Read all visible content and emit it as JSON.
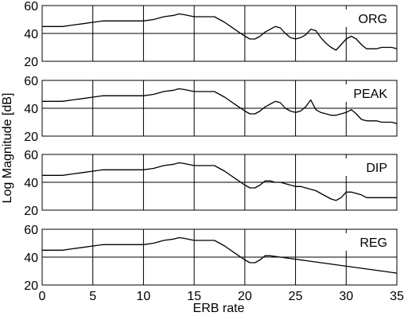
{
  "chart_data": [
    {
      "type": "line",
      "panel_label": "ORG",
      "xlim": [
        0,
        35
      ],
      "ylim": [
        20,
        60
      ],
      "yticks": [
        20,
        40,
        60
      ],
      "xticks": [
        0,
        5,
        10,
        15,
        20,
        25,
        30,
        35
      ],
      "grid": true,
      "x": [
        0,
        1,
        2,
        3,
        4,
        5,
        6,
        7,
        8,
        9,
        10,
        11,
        12,
        13,
        13.5,
        14,
        15,
        16,
        17,
        18,
        19,
        20,
        20.5,
        21,
        21.5,
        22,
        22.5,
        23,
        23.5,
        24,
        24.5,
        25,
        25.5,
        26,
        26.5,
        27,
        27.5,
        28,
        28.5,
        29,
        29.5,
        30,
        30.5,
        31,
        31.5,
        32,
        32.5,
        33,
        33.5,
        34,
        34.5,
        35
      ],
      "y": [
        45,
        45,
        45,
        46,
        47,
        48,
        49,
        49,
        49,
        49,
        49,
        50,
        52,
        53,
        54,
        53.5,
        52,
        52,
        52,
        48,
        43,
        38,
        36,
        36,
        38,
        41,
        43,
        45,
        44,
        40,
        37,
        36,
        37,
        39,
        43,
        42,
        37,
        33,
        30,
        28,
        32,
        36,
        38,
        36,
        32,
        29,
        29,
        29,
        30,
        30,
        30,
        29
      ]
    },
    {
      "type": "line",
      "panel_label": "PEAK",
      "xlim": [
        0,
        35
      ],
      "ylim": [
        20,
        60
      ],
      "yticks": [
        20,
        40,
        60
      ],
      "xticks": [
        0,
        5,
        10,
        15,
        20,
        25,
        30,
        35
      ],
      "grid": true,
      "x": [
        0,
        1,
        2,
        3,
        4,
        5,
        6,
        7,
        8,
        9,
        10,
        11,
        12,
        13,
        13.5,
        14,
        15,
        16,
        17,
        18,
        19,
        20,
        20.5,
        21,
        21.5,
        22,
        22.5,
        23,
        23.5,
        24,
        24.5,
        25,
        25.5,
        26,
        26.5,
        27,
        27.5,
        28,
        28.5,
        29,
        29.5,
        30,
        30.5,
        31,
        31.5,
        32,
        32.5,
        33,
        33.5,
        34,
        34.5,
        35
      ],
      "y": [
        45,
        45,
        45,
        46,
        47,
        48,
        49,
        49,
        49,
        49,
        49,
        50,
        52,
        53,
        54,
        53.5,
        52,
        52,
        52,
        48,
        43,
        38,
        36,
        36,
        38,
        41,
        43,
        45,
        44,
        40,
        38,
        37,
        38,
        41,
        46,
        39,
        37,
        36,
        35,
        35,
        36,
        37,
        39,
        36,
        32,
        31,
        31,
        31,
        30,
        30,
        30,
        29
      ]
    },
    {
      "type": "line",
      "panel_label": "DIP",
      "xlim": [
        0,
        35
      ],
      "ylim": [
        20,
        60
      ],
      "yticks": [
        20,
        40,
        60
      ],
      "xticks": [
        0,
        5,
        10,
        15,
        20,
        25,
        30,
        35
      ],
      "grid": true,
      "x": [
        0,
        1,
        2,
        3,
        4,
        5,
        6,
        7,
        8,
        9,
        10,
        11,
        12,
        13,
        13.5,
        14,
        15,
        16,
        17,
        18,
        19,
        20,
        20.5,
        21,
        21.5,
        22,
        22.5,
        23,
        23.5,
        24,
        24.5,
        25,
        25.5,
        26,
        26.5,
        27,
        27.5,
        28,
        28.5,
        29,
        29.5,
        30,
        30.5,
        31,
        31.5,
        32,
        32.5,
        33,
        33.5,
        34,
        34.5,
        35
      ],
      "y": [
        45,
        45,
        45,
        46,
        47,
        48,
        49,
        49,
        49,
        49,
        49,
        50,
        52,
        53,
        54,
        53.5,
        52,
        52,
        52,
        48,
        43,
        38,
        36,
        36,
        38,
        41,
        41,
        40,
        40,
        39,
        38,
        37,
        37,
        36,
        35,
        34,
        32,
        30,
        28,
        27,
        29,
        33,
        33,
        32,
        31,
        29,
        29,
        29,
        29,
        29,
        29,
        29
      ]
    },
    {
      "type": "line",
      "panel_label": "REG",
      "xlim": [
        0,
        35
      ],
      "ylim": [
        20,
        60
      ],
      "yticks": [
        20,
        40,
        60
      ],
      "xticks": [
        0,
        5,
        10,
        15,
        20,
        25,
        30,
        35
      ],
      "grid": true,
      "x": [
        0,
        1,
        2,
        3,
        4,
        5,
        6,
        7,
        8,
        9,
        10,
        11,
        12,
        13,
        13.5,
        14,
        15,
        16,
        17,
        18,
        19,
        20,
        20.5,
        21,
        21.5,
        22,
        22.5,
        23,
        24,
        25,
        26,
        27,
        28,
        29,
        30,
        31,
        32,
        33,
        34,
        35
      ],
      "y": [
        45,
        45,
        45,
        46,
        47,
        48,
        49,
        49,
        49,
        49,
        49,
        50,
        52,
        53,
        54,
        53.5,
        52,
        52,
        52,
        48,
        43,
        38,
        36,
        36,
        38,
        41,
        41,
        40.5,
        39.5,
        38.5,
        37.5,
        36.5,
        35.5,
        34.5,
        33.5,
        32.5,
        31.5,
        30.5,
        29.5,
        28.5
      ]
    }
  ],
  "xlabel": "ERB rate",
  "ylabel": "Log Magnitude [dB]"
}
